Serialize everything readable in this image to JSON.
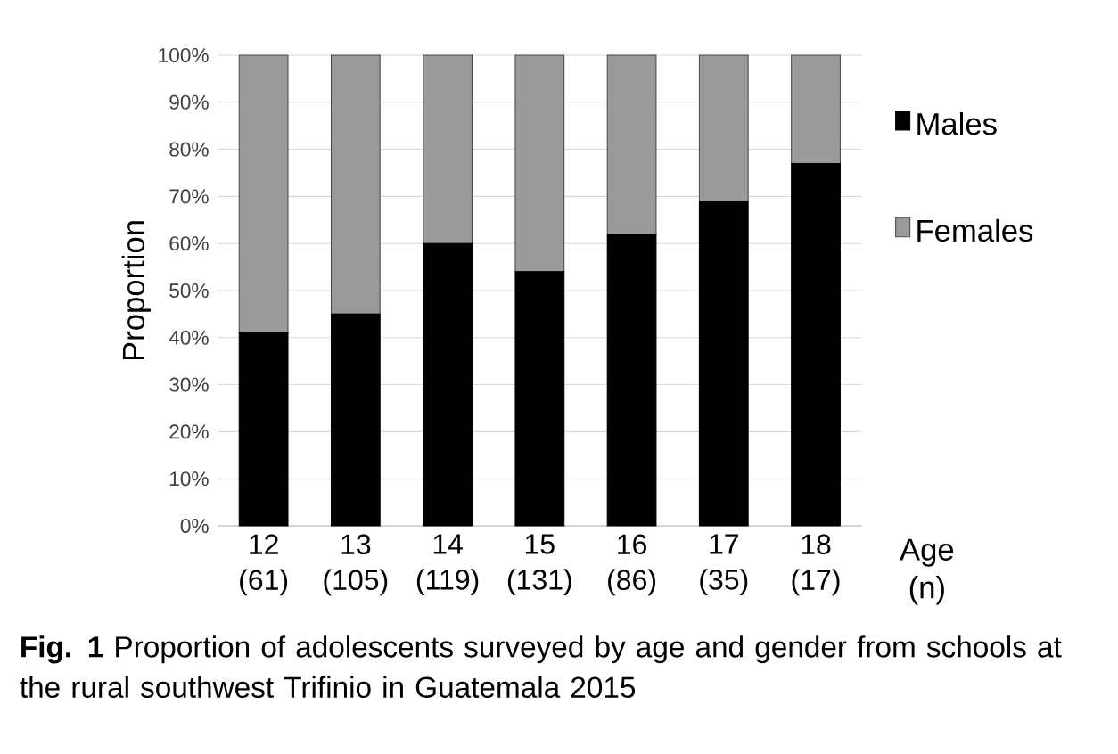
{
  "chart_data": {
    "type": "bar",
    "stacked": true,
    "categories": [
      "12 (61)",
      "13 (105)",
      "14 (119)",
      "15 (131)",
      "16 (86)",
      "17 (35)",
      "18 (17)"
    ],
    "xlabel": "Age (n)",
    "ylabel": "Proportion",
    "series": [
      {
        "name": "Males",
        "color": "#000000",
        "values": [
          41,
          45,
          60,
          54,
          62,
          69,
          77
        ]
      },
      {
        "name": "Females",
        "color": "#9a9a9a",
        "values": [
          59,
          55,
          40,
          46,
          38,
          31,
          23
        ]
      }
    ],
    "ylim": [
      0,
      100
    ],
    "yticks": [
      {
        "value": 0,
        "label": "0%"
      },
      {
        "value": 10,
        "label": "10%"
      },
      {
        "value": 20,
        "label": "20%"
      },
      {
        "value": 30,
        "label": "30%"
      },
      {
        "value": 40,
        "label": "40%"
      },
      {
        "value": 50,
        "label": "50%"
      },
      {
        "value": 60,
        "label": "60%"
      },
      {
        "value": 70,
        "label": "70%"
      },
      {
        "value": 80,
        "label": "80%"
      },
      {
        "value": 90,
        "label": "90%"
      },
      {
        "value": 100,
        "label": "100%"
      }
    ],
    "grid": "y",
    "legend": "right",
    "annotations": [
      "**Fig. 1** Proportion of adolescents surveyed by age and gender from schools at the rural southwest Trifinio in Guatemala 2015"
    ]
  }
}
